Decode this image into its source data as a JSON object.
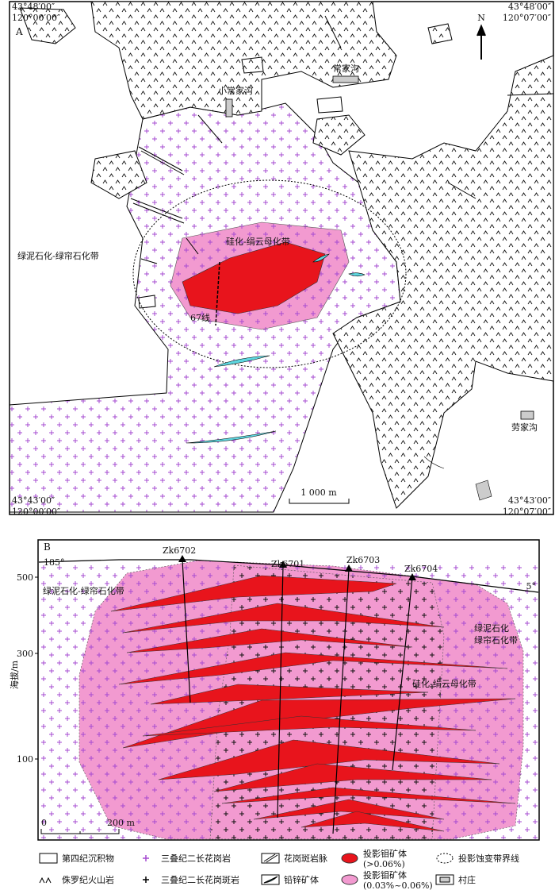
{
  "panel_a": {
    "label": "A",
    "corners": {
      "top_left": {
        "lat": "43°48′00″",
        "lon": "120°00′00″"
      },
      "top_right": {
        "lat": "43°48′00″",
        "lon": "120°07′00″"
      },
      "bottom_left": {
        "lat": "43°43′00″",
        "lon": "120°00′00″"
      },
      "bottom_right": {
        "lat": "43°43′00″",
        "lon": "120°07′00″"
      }
    },
    "north": "N",
    "villages": [
      "常家沟",
      "小常家沟",
      "劳家沟"
    ],
    "zone_outer": "绿泥石化-绿帘石化带",
    "zone_inner": "硅化-绢云母化带",
    "section_line": "67线",
    "scale": "1 000 m"
  },
  "panel_b": {
    "label": "B",
    "azimuth_left": "185°",
    "azimuth_right": "5°",
    "drill_holes": [
      "Zk6702",
      "Zk6701",
      "Zk6703",
      "Zk6704"
    ],
    "y_axis_label": "海拔/m",
    "yticks": [
      500,
      300,
      100
    ],
    "zone_left": "绿泥石化-绿帘石化带",
    "zone_right": [
      "绿泥石化",
      "绿帘石化带"
    ],
    "zone_center": "硅化-绢云母化带",
    "scale": [
      "0",
      "200 m"
    ]
  },
  "legend": [
    {
      "label": "第四纪沉积物"
    },
    {
      "label": "三叠纪二长花岗岩"
    },
    {
      "label": "花岗斑岩脉"
    },
    {
      "label": "投影钼矿体",
      "note": "(>0.06%)"
    },
    {
      "label": "投影蚀变带界线"
    },
    {
      "label": "侏罗纪火山岩"
    },
    {
      "label": "三叠纪二长花岗斑岩"
    },
    {
      "label": "铅锌矿体"
    },
    {
      "label": "投影钼矿体",
      "note": "(0.03%~0.06%)"
    },
    {
      "label": "村庄"
    }
  ]
}
